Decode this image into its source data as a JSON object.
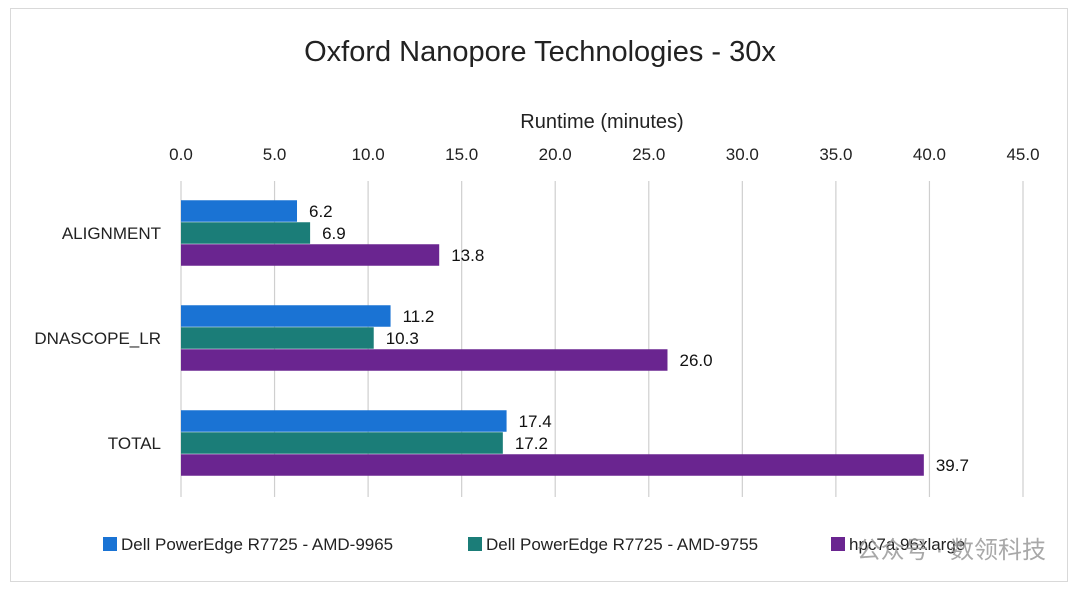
{
  "chart_data": {
    "type": "bar",
    "orientation": "horizontal",
    "title": "Oxford Nanopore Technologies - 30x",
    "xlabel": "Runtime (minutes)",
    "ylabel": "",
    "xlim": [
      0,
      45
    ],
    "ticks": [
      "0.0",
      "5.0",
      "10.0",
      "15.0",
      "20.0",
      "25.0",
      "30.0",
      "35.0",
      "40.0",
      "45.0"
    ],
    "tick_values": [
      0,
      5,
      10,
      15,
      20,
      25,
      30,
      35,
      40,
      45
    ],
    "grid": true,
    "legend_position": "bottom",
    "categories": [
      "ALIGNMENT",
      "DNASCOPE_LR",
      "TOTAL"
    ],
    "series": [
      {
        "name": "Dell PowerEdge R7725 - AMD-9965",
        "color": "#1a73d4",
        "values": [
          6.2,
          11.2,
          17.4
        ],
        "labels": [
          "6.2",
          "11.2",
          "17.4"
        ]
      },
      {
        "name": "Dell PowerEdge R7725 - AMD-9755",
        "color": "#1b7d78",
        "values": [
          6.9,
          10.3,
          17.2
        ],
        "labels": [
          "6.9",
          "10.3",
          "17.2"
        ]
      },
      {
        "name": "hpc7a.96xlarge",
        "color": "#6a2590",
        "values": [
          13.8,
          26.0,
          39.7
        ],
        "labels": [
          "13.8",
          "26.0",
          "39.7"
        ]
      }
    ]
  },
  "watermark": "公众号 · 数领科技"
}
